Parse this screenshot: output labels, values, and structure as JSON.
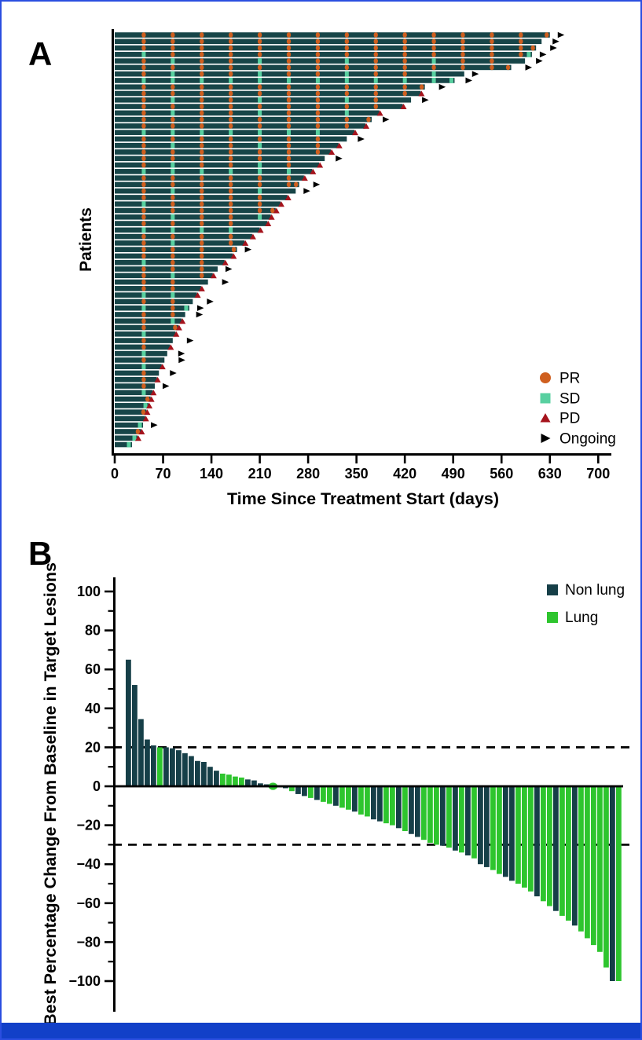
{
  "page": {
    "panel_a_label": "A",
    "panel_b_label": "B",
    "border_color": "#2b4ee0",
    "footer_band_color": "#1240c8",
    "background": "#ffffff"
  },
  "colors": {
    "swimmer_bar": "#174548",
    "pr": "#cf5f1f",
    "sd": "#58d0a0",
    "pd": "#a5131c",
    "ongoing": "#000000",
    "non_lung": "#163f48",
    "lung": "#2ec52e",
    "axis": "#000000"
  },
  "chart_data": [
    {
      "type": "swimmer",
      "panel": "A",
      "xlabel": "Time Since Treatment Start (days)",
      "ylabel": "Patients",
      "x_ticks": [
        0,
        70,
        140,
        210,
        280,
        350,
        420,
        490,
        560,
        630,
        700
      ],
      "xlim": [
        0,
        718
      ],
      "grid": false,
      "legend_position": "lower right",
      "assessment_interval_days": 42,
      "legend": [
        {
          "label": "PR",
          "marker": "circle",
          "color": "#cf5f1f"
        },
        {
          "label": "SD",
          "marker": "square",
          "color": "#58d0a0"
        },
        {
          "label": "PD",
          "marker": "triangle-up",
          "color": "#a5131c"
        },
        {
          "label": "Ongoing",
          "marker": "arrow-right",
          "color": "#000000"
        }
      ],
      "bars": [
        {
          "days": 630,
          "pattern": "pr",
          "end": "ongoing",
          "tip": "pr"
        },
        {
          "days": 618,
          "pattern": "pr",
          "end": "ongoing"
        },
        {
          "days": 610,
          "pattern": "pr",
          "end": "ongoing",
          "tip": "pr"
        },
        {
          "days": 604,
          "pattern": "sd1",
          "end": "ongoing",
          "tip": "sd"
        },
        {
          "days": 594,
          "pattern": "mix",
          "end": "ongoing"
        },
        {
          "days": 574,
          "pattern": "pr",
          "end": "ongoing",
          "tip": "pr"
        },
        {
          "days": 506,
          "pattern": "mix",
          "end": "ongoing"
        },
        {
          "days": 492,
          "pattern": "sd",
          "end": "ongoing",
          "tip": "sd"
        },
        {
          "days": 449,
          "pattern": "pr",
          "end": "ongoing",
          "tip": "pr"
        },
        {
          "days": 443,
          "pattern": "pr",
          "end": "pd"
        },
        {
          "days": 429,
          "pattern": "mix",
          "end": "ongoing"
        },
        {
          "days": 417,
          "pattern": "pr",
          "end": "pd"
        },
        {
          "days": 383,
          "pattern": "mix",
          "end": "pd"
        },
        {
          "days": 372,
          "pattern": "pr",
          "end": "ongoing",
          "tip": "pr"
        },
        {
          "days": 363,
          "pattern": "pr",
          "end": "pd"
        },
        {
          "days": 347,
          "pattern": "sd",
          "end": "pd"
        },
        {
          "days": 336,
          "pattern": "pr",
          "end": "ongoing"
        },
        {
          "days": 324,
          "pattern": "mix",
          "end": "pd"
        },
        {
          "days": 313,
          "pattern": "pr",
          "end": "pd"
        },
        {
          "days": 304,
          "pattern": "pr",
          "end": "ongoing"
        },
        {
          "days": 296,
          "pattern": "mix",
          "end": "pd"
        },
        {
          "days": 286,
          "pattern": "sd",
          "end": "pd"
        },
        {
          "days": 274,
          "pattern": "pr",
          "end": "pd"
        },
        {
          "days": 267,
          "pattern": "pr",
          "end": "ongoing",
          "tip": "pr"
        },
        {
          "days": 262,
          "pattern": "mix",
          "end": "ongoing"
        },
        {
          "days": 250,
          "pattern": "pr",
          "end": "pd"
        },
        {
          "days": 240,
          "pattern": "sd1",
          "end": "pd"
        },
        {
          "days": 233,
          "pattern": "pr",
          "end": "pd",
          "tip": "pr"
        },
        {
          "days": 226,
          "pattern": "mix",
          "end": "pd"
        },
        {
          "days": 221,
          "pattern": "pr",
          "end": "pd"
        },
        {
          "days": 210,
          "pattern": "sd",
          "end": "pd"
        },
        {
          "days": 199,
          "pattern": "pr",
          "end": "pd"
        },
        {
          "days": 188,
          "pattern": "mix",
          "end": "pd"
        },
        {
          "days": 177,
          "pattern": "pr",
          "end": "ongoing",
          "tip": "pr"
        },
        {
          "days": 171,
          "pattern": "pr",
          "end": "pd"
        },
        {
          "days": 159,
          "pattern": "sd1",
          "end": "pd"
        },
        {
          "days": 149,
          "pattern": "pr",
          "end": "ongoing"
        },
        {
          "days": 142,
          "pattern": "mix",
          "end": "pd"
        },
        {
          "days": 135,
          "pattern": "pr",
          "end": "ongoing"
        },
        {
          "days": 125,
          "pattern": "pr",
          "end": "pd"
        },
        {
          "days": 119,
          "pattern": "sd",
          "end": "pd"
        },
        {
          "days": 113,
          "pattern": "pr",
          "end": "ongoing"
        },
        {
          "days": 108,
          "pattern": "sd1",
          "end": "ongoing",
          "tip": "sd"
        },
        {
          "days": 102,
          "pattern": "pr",
          "end": "ongoing"
        },
        {
          "days": 97,
          "pattern": "mix",
          "end": "pd"
        },
        {
          "days": 92,
          "pattern": "pr",
          "end": "pd",
          "tip": "pr"
        },
        {
          "days": 88,
          "pattern": "sd1",
          "end": "pd"
        },
        {
          "days": 84,
          "pattern": "pr",
          "end": "ongoing"
        },
        {
          "days": 80,
          "pattern": "pr",
          "end": "pd"
        },
        {
          "days": 76,
          "pattern": "sd",
          "end": "ongoing"
        },
        {
          "days": 72,
          "pattern": "pr",
          "end": "ongoing"
        },
        {
          "days": 68,
          "pattern": "sd1",
          "end": "pd"
        },
        {
          "days": 64,
          "pattern": "pr",
          "end": "ongoing"
        },
        {
          "days": 61,
          "pattern": "pr",
          "end": "pd"
        },
        {
          "days": 58,
          "pattern": "mix",
          "end": "ongoing"
        },
        {
          "days": 55,
          "pattern": "sd",
          "end": "pd"
        },
        {
          "days": 52,
          "pattern": "pr",
          "end": "pd",
          "tip": "pr"
        },
        {
          "days": 49,
          "pattern": "sd1",
          "end": "pd",
          "tip": "sd"
        },
        {
          "days": 46,
          "pattern": "pr",
          "end": "pd",
          "tip": "pr"
        },
        {
          "days": 44,
          "pattern": "pr",
          "end": "pd"
        },
        {
          "days": 41,
          "pattern": "sd",
          "end": "ongoing",
          "tip": "sd"
        },
        {
          "days": 38,
          "pattern": "pr",
          "end": "pd",
          "tip": "pr"
        },
        {
          "days": 33,
          "pattern": "sd1",
          "end": "pd",
          "tip": "sd"
        },
        {
          "days": 25,
          "pattern": "sd",
          "end": "none",
          "tip": "sd"
        }
      ]
    },
    {
      "type": "bar",
      "subtype": "waterfall",
      "panel": "B",
      "ylabel": "Best Percentage Change From Baseline in Target Lesions",
      "y_ticks": [
        100,
        80,
        60,
        40,
        20,
        0,
        -20,
        -40,
        -60,
        -80,
        -100
      ],
      "ylim": [
        -105,
        108
      ],
      "reference_lines": [
        20,
        -30
      ],
      "grid": false,
      "legend_position": "upper right",
      "legend": [
        {
          "label": "Non lung",
          "group": "N",
          "color": "#163f48"
        },
        {
          "label": "Lung",
          "group": "L",
          "color": "#2ec52e"
        }
      ],
      "zero_value_marker": "dot",
      "bars": [
        {
          "v": 65,
          "g": "N"
        },
        {
          "v": 52,
          "g": "N"
        },
        {
          "v": 34.5,
          "g": "N"
        },
        {
          "v": 24,
          "g": "N"
        },
        {
          "v": 21,
          "g": "N"
        },
        {
          "v": 20,
          "g": "L"
        },
        {
          "v": 20,
          "g": "N"
        },
        {
          "v": 19.5,
          "g": "N"
        },
        {
          "v": 18.5,
          "g": "N"
        },
        {
          "v": 17,
          "g": "N"
        },
        {
          "v": 15.5,
          "g": "N"
        },
        {
          "v": 13,
          "g": "N"
        },
        {
          "v": 12.5,
          "g": "N"
        },
        {
          "v": 10,
          "g": "N"
        },
        {
          "v": 8,
          "g": "N"
        },
        {
          "v": 6.5,
          "g": "L"
        },
        {
          "v": 6,
          "g": "L"
        },
        {
          "v": 5,
          "g": "L"
        },
        {
          "v": 4.5,
          "g": "L"
        },
        {
          "v": 3.5,
          "g": "N"
        },
        {
          "v": 3,
          "g": "N"
        },
        {
          "v": 1.5,
          "g": "N"
        },
        {
          "v": 1,
          "g": "N"
        },
        {
          "v": 0,
          "g": "L"
        },
        {
          "v": -0.5,
          "g": "N"
        },
        {
          "v": -1,
          "g": "N"
        },
        {
          "v": -2.5,
          "g": "L"
        },
        {
          "v": -4,
          "g": "N"
        },
        {
          "v": -5,
          "g": "N"
        },
        {
          "v": -6,
          "g": "L"
        },
        {
          "v": -7,
          "g": "N"
        },
        {
          "v": -8,
          "g": "L"
        },
        {
          "v": -9,
          "g": "L"
        },
        {
          "v": -10,
          "g": "N"
        },
        {
          "v": -11,
          "g": "L"
        },
        {
          "v": -12,
          "g": "L"
        },
        {
          "v": -13,
          "g": "N"
        },
        {
          "v": -14.5,
          "g": "L"
        },
        {
          "v": -15.5,
          "g": "L"
        },
        {
          "v": -17,
          "g": "N"
        },
        {
          "v": -18,
          "g": "N"
        },
        {
          "v": -19,
          "g": "L"
        },
        {
          "v": -20,
          "g": "L"
        },
        {
          "v": -21.5,
          "g": "N"
        },
        {
          "v": -23,
          "g": "L"
        },
        {
          "v": -24.5,
          "g": "N"
        },
        {
          "v": -26,
          "g": "N"
        },
        {
          "v": -27.5,
          "g": "L"
        },
        {
          "v": -29,
          "g": "L"
        },
        {
          "v": -30,
          "g": "L"
        },
        {
          "v": -30.5,
          "g": "N"
        },
        {
          "v": -31.5,
          "g": "L"
        },
        {
          "v": -33,
          "g": "N"
        },
        {
          "v": -34,
          "g": "L"
        },
        {
          "v": -35.5,
          "g": "N"
        },
        {
          "v": -37,
          "g": "L"
        },
        {
          "v": -40,
          "g": "N"
        },
        {
          "v": -41.5,
          "g": "N"
        },
        {
          "v": -43,
          "g": "L"
        },
        {
          "v": -45,
          "g": "L"
        },
        {
          "v": -46.5,
          "g": "N"
        },
        {
          "v": -48.5,
          "g": "N"
        },
        {
          "v": -50,
          "g": "L"
        },
        {
          "v": -52,
          "g": "L"
        },
        {
          "v": -54,
          "g": "L"
        },
        {
          "v": -56.5,
          "g": "N"
        },
        {
          "v": -59,
          "g": "L"
        },
        {
          "v": -61.5,
          "g": "L"
        },
        {
          "v": -64,
          "g": "N"
        },
        {
          "v": -66.5,
          "g": "L"
        },
        {
          "v": -69,
          "g": "L"
        },
        {
          "v": -71.5,
          "g": "N"
        },
        {
          "v": -74.5,
          "g": "L"
        },
        {
          "v": -78,
          "g": "L"
        },
        {
          "v": -81.5,
          "g": "L"
        },
        {
          "v": -85,
          "g": "L"
        },
        {
          "v": -93,
          "g": "L"
        },
        {
          "v": -100,
          "g": "N"
        },
        {
          "v": -100,
          "g": "L"
        }
      ]
    }
  ]
}
